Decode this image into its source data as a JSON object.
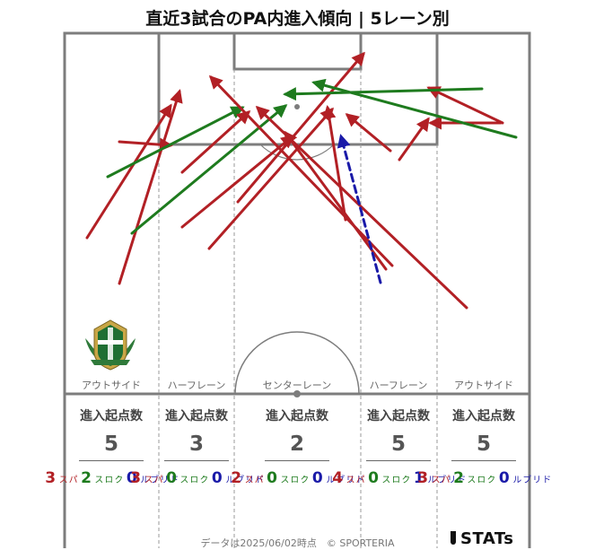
{
  "title": "直近3試合のPA内進入傾向 | 5レーン別",
  "lanes": [
    {
      "name": "アウトサイド",
      "label": "進入起点数",
      "total": "5",
      "pass": "3",
      "cross": "2",
      "dribble": "0"
    },
    {
      "name": "ハーフレーン",
      "label": "進入起点数",
      "total": "3",
      "pass": "3",
      "cross": "0",
      "dribble": "0"
    },
    {
      "name": "センターレーン",
      "label": "進入起点数",
      "total": "2",
      "pass": "2",
      "cross": "0",
      "dribble": "0"
    },
    {
      "name": "ハーフレーン",
      "label": "進入起点数",
      "total": "5",
      "pass": "4",
      "cross": "0",
      "dribble": "1"
    },
    {
      "name": "アウトサイド",
      "label": "進入起点数",
      "total": "5",
      "pass": "3",
      "cross": "2",
      "dribble": "0"
    }
  ],
  "type_labels": {
    "pass": "パス",
    "cross": "クロス",
    "dribble": "ドリブル"
  },
  "colors": {
    "pass": "#b22025",
    "cross": "#1e7b1e",
    "dribble": "#1a1aa8"
  },
  "footer": "データは2025/06/02時点　© SPORTERIA",
  "brand": "STATs",
  "entries": [
    {
      "type": "pass",
      "from": [
        133,
        316
      ],
      "to": [
        200,
        102
      ]
    },
    {
      "type": "pass",
      "from": [
        97,
        265
      ],
      "to": [
        190,
        118
      ]
    },
    {
      "type": "pass",
      "from": [
        133,
        158
      ],
      "to": [
        190,
        162
      ]
    },
    {
      "type": "cross",
      "from": [
        120,
        197
      ],
      "to": [
        270,
        120
      ]
    },
    {
      "type": "cross",
      "from": [
        147,
        260
      ],
      "to": [
        318,
        118
      ]
    },
    {
      "type": "pass",
      "from": [
        203,
        192
      ],
      "to": [
        277,
        125
      ]
    },
    {
      "type": "pass",
      "from": [
        203,
        253
      ],
      "to": [
        326,
        152
      ]
    },
    {
      "type": "pass",
      "from": [
        233,
        277
      ],
      "to": [
        370,
        122
      ]
    },
    {
      "type": "pass",
      "from": [
        265,
        225
      ],
      "to": [
        405,
        60
      ]
    },
    {
      "type": "pass",
      "from": [
        520,
        343
      ],
      "to": [
        287,
        120
      ]
    },
    {
      "type": "pass",
      "from": [
        437,
        296
      ],
      "to": [
        235,
        86
      ]
    },
    {
      "type": "pass",
      "from": [
        430,
        300
      ],
      "to": [
        318,
        148
      ]
    },
    {
      "type": "pass",
      "from": [
        385,
        245
      ],
      "to": [
        365,
        120
      ]
    },
    {
      "type": "dribble",
      "from": [
        424,
        315
      ],
      "to": [
        380,
        152
      ]
    },
    {
      "type": "pass",
      "from": [
        435,
        168
      ],
      "to": [
        387,
        128
      ]
    },
    {
      "type": "pass",
      "from": [
        445,
        178
      ],
      "to": [
        477,
        133
      ]
    },
    {
      "type": "pass",
      "from": [
        558,
        137
      ],
      "to": [
        480,
        137
      ]
    },
    {
      "type": "pass",
      "from": [
        560,
        137
      ],
      "to": [
        478,
        98
      ]
    },
    {
      "type": "cross",
      "from": [
        537,
        99
      ],
      "to": [
        318,
        105
      ]
    },
    {
      "type": "cross",
      "from": [
        575,
        153
      ],
      "to": [
        350,
        92
      ]
    }
  ]
}
